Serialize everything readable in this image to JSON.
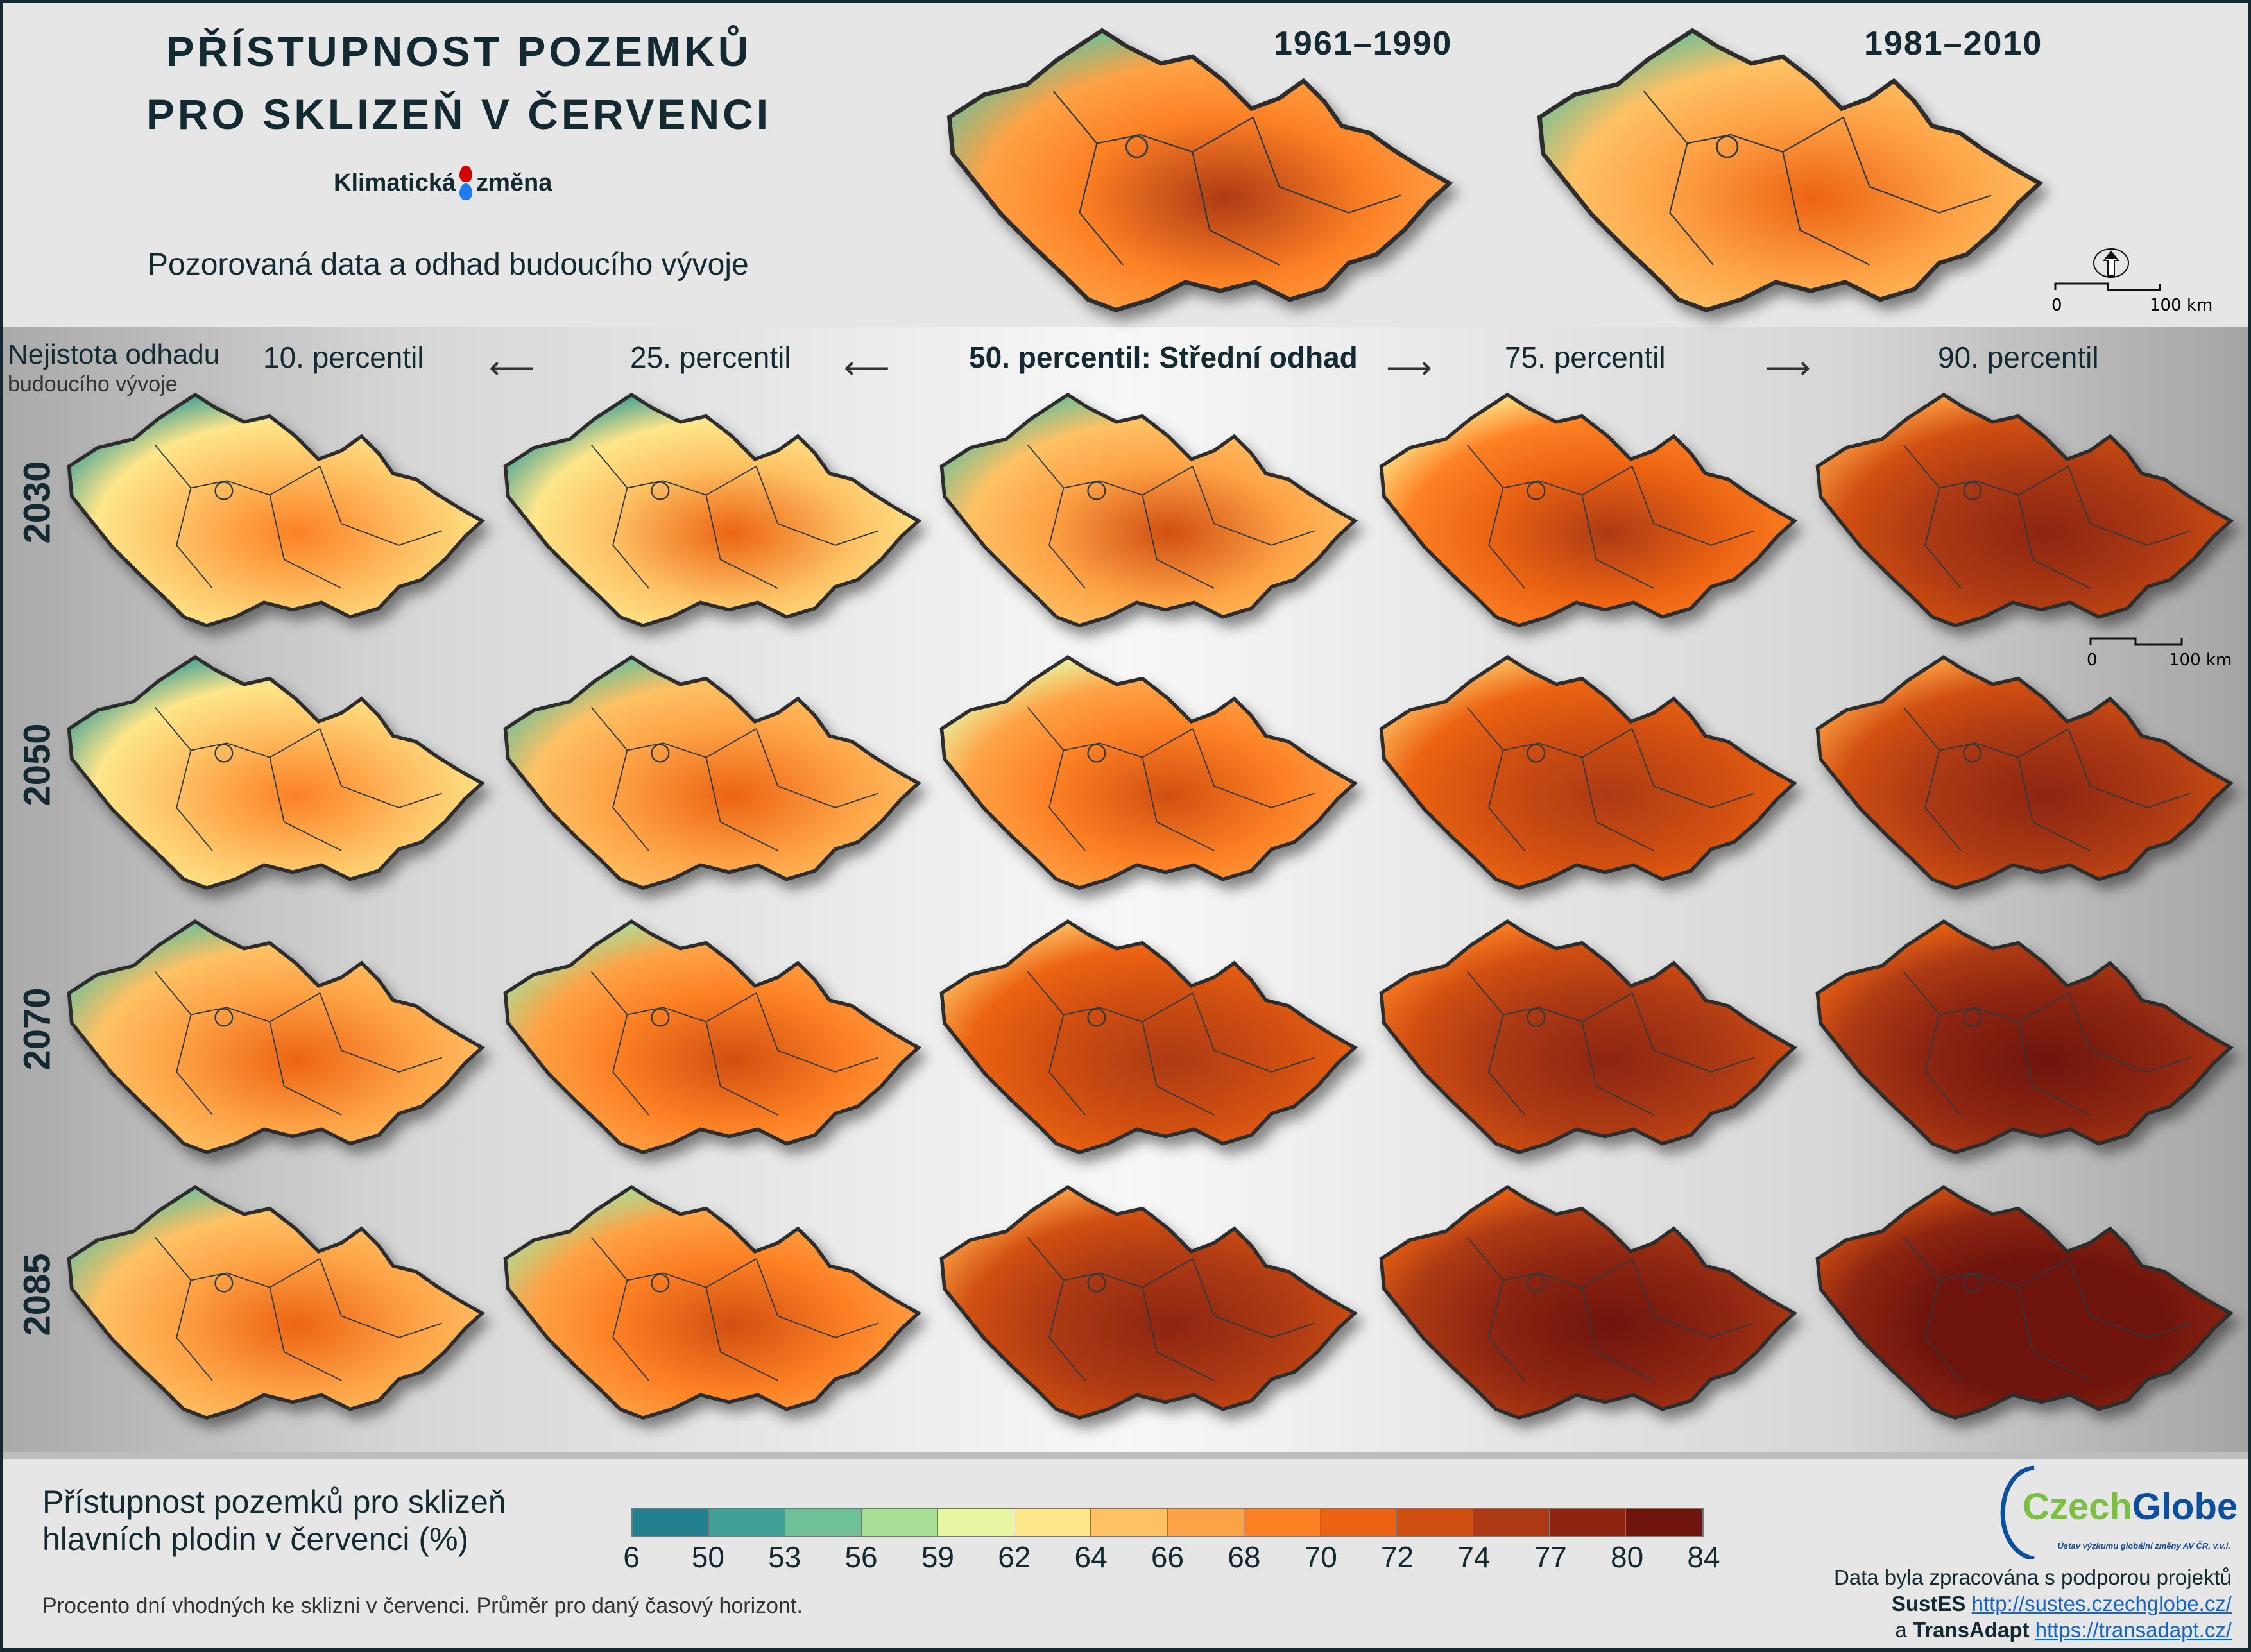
{
  "header": {
    "title_line1": "PŘÍSTUPNOST POZEMKŮ",
    "title_line2": "PRO SKLIZEŇ V ČERVENCI",
    "brand_left": "Klimatická",
    "brand_right": "změna",
    "subtitle": "Pozorovaná data a odhad budoucího vývoje",
    "observed_maps": [
      {
        "label": "1961–1990",
        "tone": [
          2,
          11
        ]
      },
      {
        "label": "1981–2010",
        "tone": [
          2,
          9
        ]
      }
    ],
    "scale_zero": "0",
    "scale_end": "100 km"
  },
  "grid": {
    "uncertainty_label": "Nejistota odhadu",
    "uncertainty_sub": "budoucího vývoje",
    "columns": [
      "10. percentil",
      "25. percentil",
      "50. percentil: Střední odhad",
      "75. percentil",
      "90. percentil"
    ],
    "scale_zero": "0",
    "scale_end": "100 km",
    "rows": [
      {
        "year": "2030",
        "tones": [
          [
            1,
            8
          ],
          [
            1,
            9
          ],
          [
            2,
            10
          ],
          [
            5,
            11
          ],
          [
            7,
            12
          ]
        ]
      },
      {
        "year": "2050",
        "tones": [
          [
            1,
            8
          ],
          [
            2,
            9
          ],
          [
            4,
            10
          ],
          [
            6,
            11
          ],
          [
            7,
            12
          ]
        ]
      },
      {
        "year": "2070",
        "tones": [
          [
            2,
            9
          ],
          [
            3,
            10
          ],
          [
            6,
            11
          ],
          [
            8,
            12
          ],
          [
            9,
            13
          ]
        ]
      },
      {
        "year": "2085",
        "tones": [
          [
            2,
            9
          ],
          [
            3,
            10
          ],
          [
            7,
            12
          ],
          [
            9,
            13
          ],
          [
            10,
            13
          ]
        ]
      }
    ]
  },
  "legend": {
    "title_line1": "Přístupnost pozemků pro sklizeň",
    "title_line2": "hlavních plodin v červenci (%)",
    "colors": [
      "#23808f",
      "#42a196",
      "#6fbf97",
      "#a9de97",
      "#e8f5a2",
      "#fee68a",
      "#fec164",
      "#fea246",
      "#fd8125",
      "#ec6413",
      "#d04f11",
      "#ad3a14",
      "#8d2511",
      "#6f150d"
    ],
    "ticks": [
      "6",
      "50",
      "53",
      "56",
      "59",
      "62",
      "64",
      "66",
      "68",
      "70",
      "72",
      "74",
      "77",
      "80",
      "84"
    ],
    "caption": "Procento dní vhodných ke sklizni v červenci. Průměr pro daný časový horizont."
  },
  "footer": {
    "logo_green": "Czech",
    "logo_blue": "Globe",
    "logo_sub": "Ústav výzkumu globální změny AV ČR, v.v.i.",
    "credit_line": "Data byla zpracována s podporou projektů",
    "project1": "SustES",
    "link1": "http://sustes.czechglobe.cz/",
    "project2_prefix": "a",
    "project2": "TransAdapt",
    "link2": "https://transadapt.cz/"
  }
}
